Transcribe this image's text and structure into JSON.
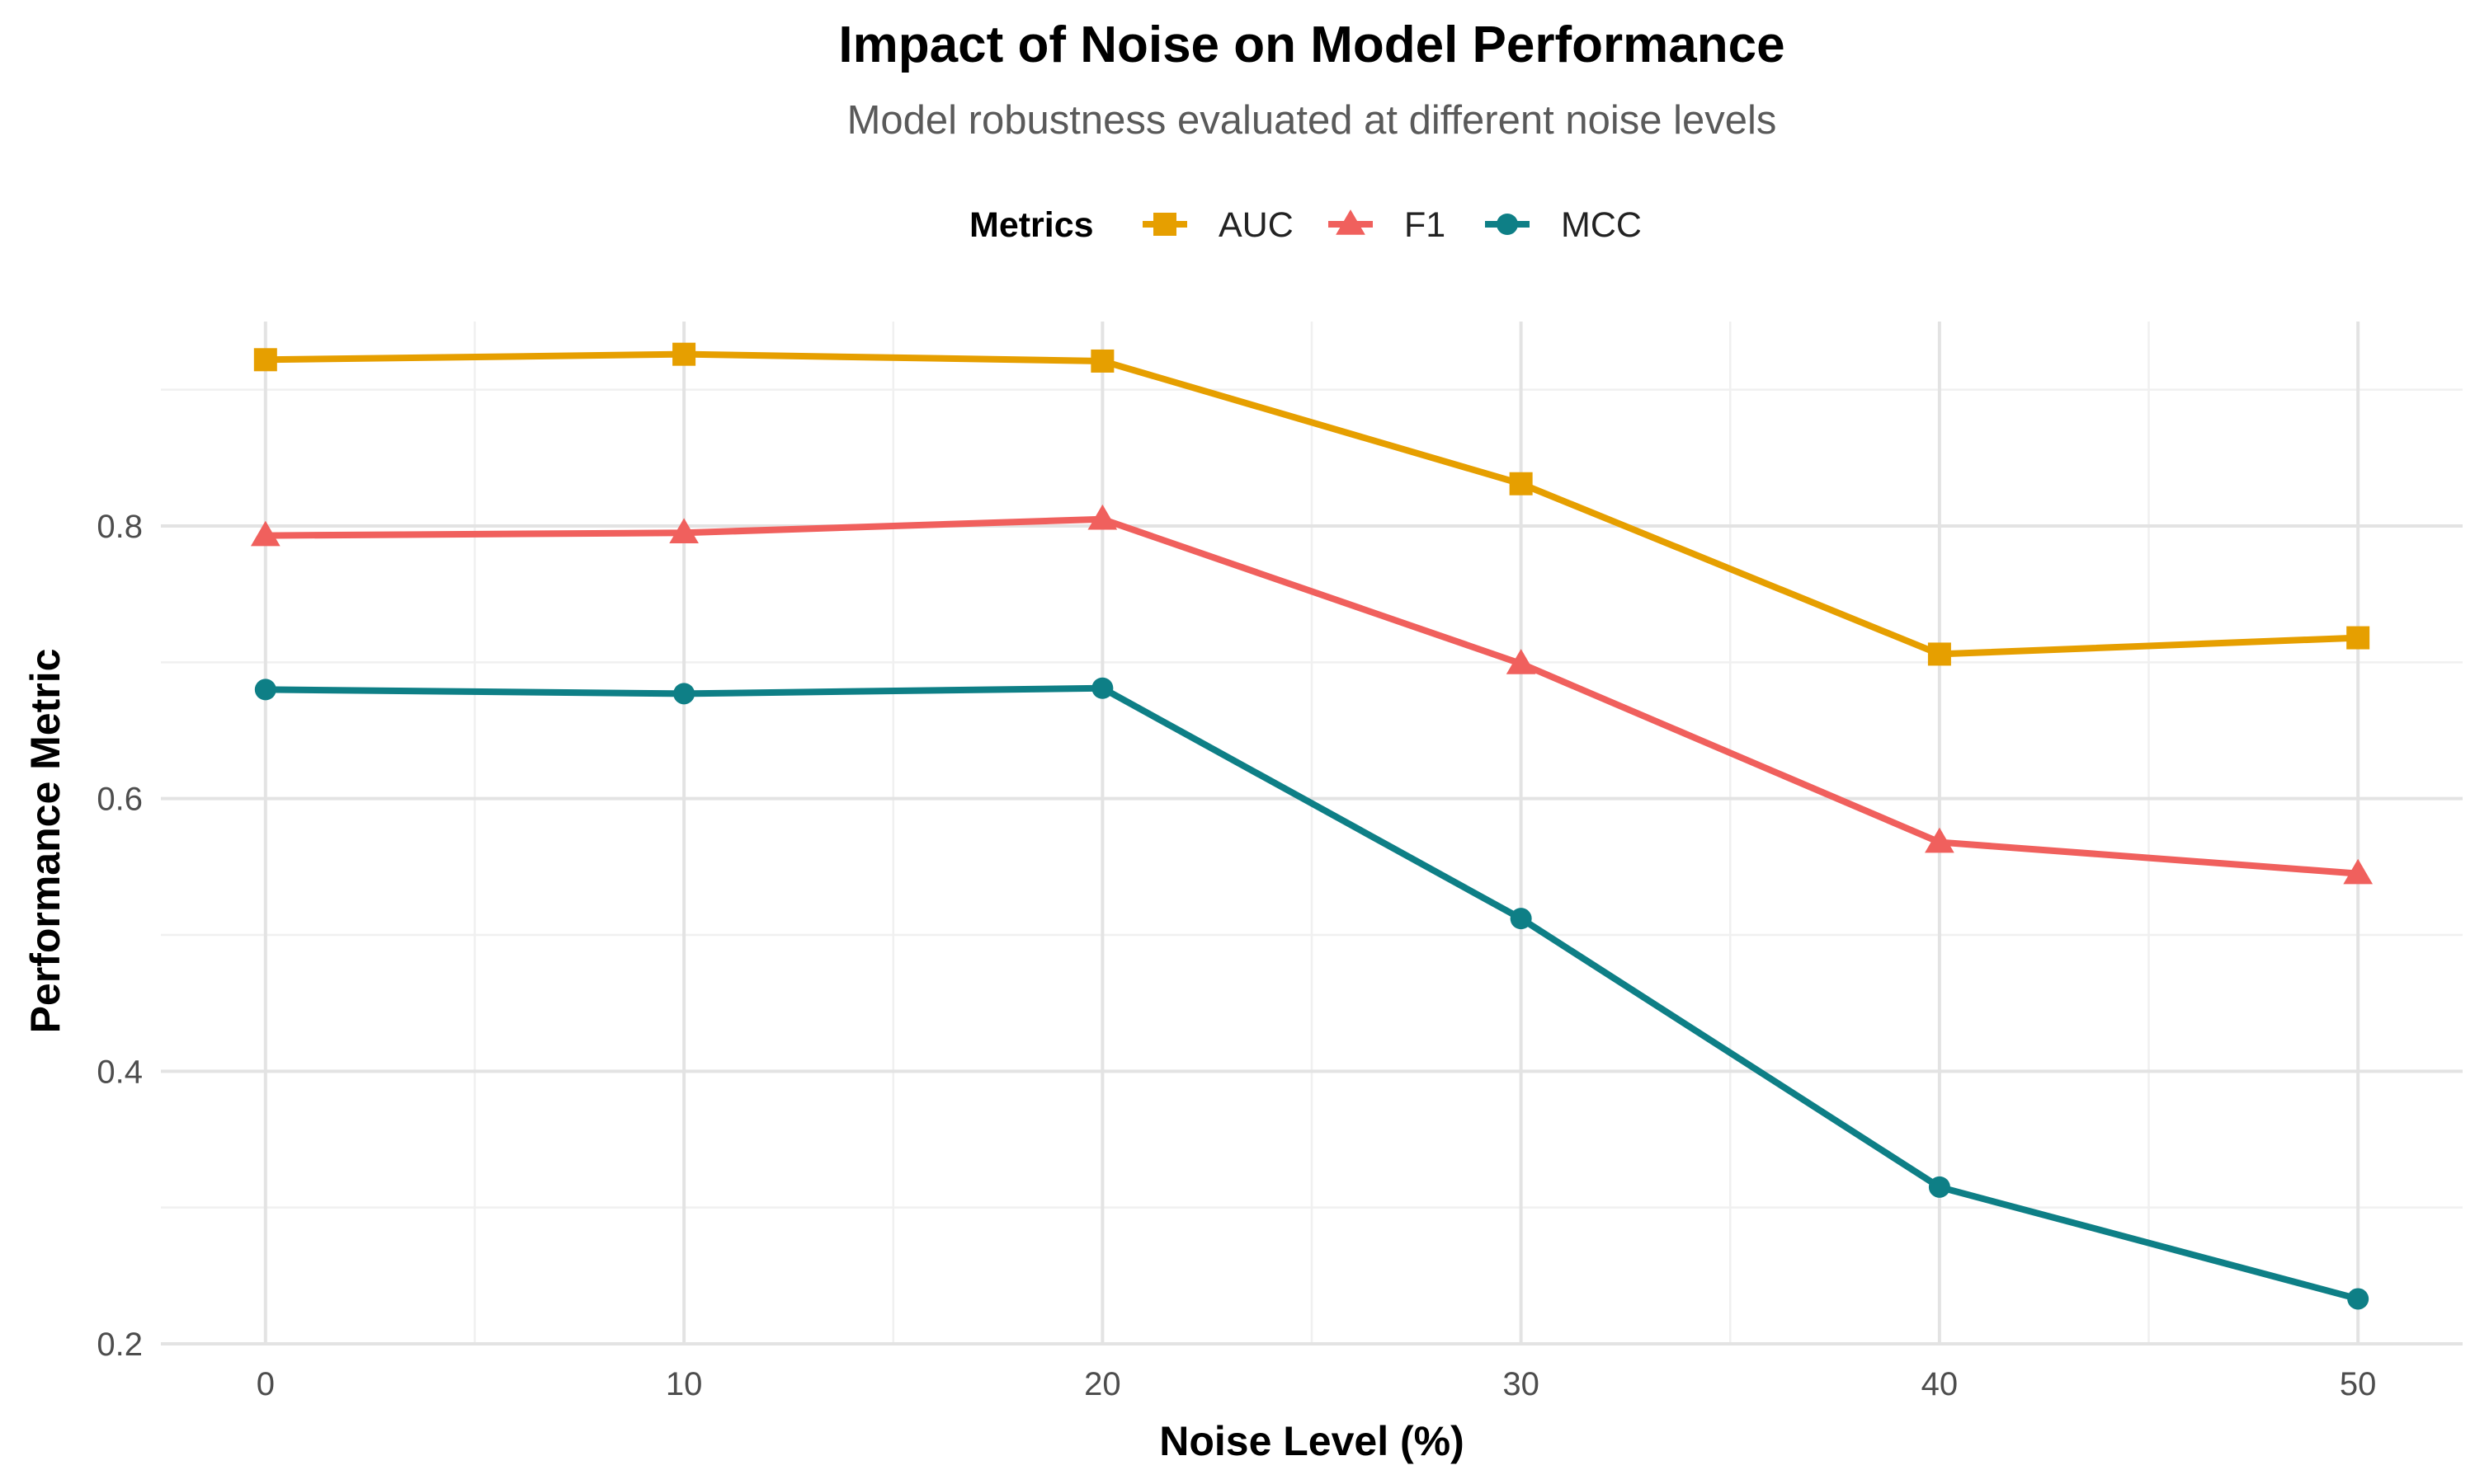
{
  "chart_data": {
    "type": "line",
    "title": "Impact of Noise on Model Performance",
    "subtitle": "Model robustness evaluated at different noise levels",
    "xlabel": "Noise Level (%)",
    "ylabel": "Performance Metric",
    "x": [
      0,
      10,
      20,
      30,
      40,
      50
    ],
    "xlim": [
      -2.5,
      52.5
    ],
    "ylim": [
      0.2,
      0.95
    ],
    "x_ticks": [
      0,
      10,
      20,
      30,
      40,
      50
    ],
    "y_ticks": [
      0.2,
      0.4,
      0.6,
      0.8
    ],
    "x_tick_labels": [
      "0",
      "10",
      "20",
      "30",
      "40",
      "50"
    ],
    "y_tick_labels": [
      "0.2",
      "0.4",
      "0.6",
      "0.8"
    ],
    "grid": true,
    "legend": {
      "title": "Metrics",
      "position": "top"
    },
    "series": [
      {
        "name": "AUC",
        "color": "#E69F00",
        "marker": "square",
        "values": [
          0.922,
          0.926,
          0.921,
          0.831,
          0.706,
          0.718
        ]
      },
      {
        "name": "F1",
        "color": "#F0605D",
        "marker": "triangle",
        "values": [
          0.793,
          0.795,
          0.805,
          0.699,
          0.568,
          0.545
        ]
      },
      {
        "name": "MCC",
        "color": "#0E7F86",
        "marker": "circle",
        "values": [
          0.68,
          0.677,
          0.681,
          0.512,
          0.315,
          0.233
        ]
      }
    ]
  }
}
